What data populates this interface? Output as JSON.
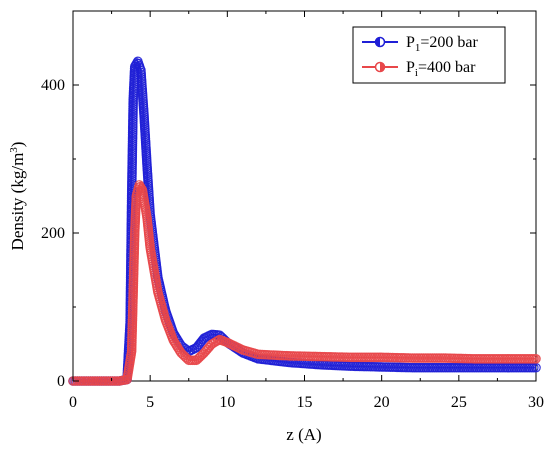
{
  "chart_data": {
    "type": "scatter",
    "xlabel": "z (A)",
    "ylabel_main": "Density (kg/m",
    "ylabel_sup": "3",
    "ylabel_close": ")",
    "xlim": [
      0,
      30
    ],
    "ylim": [
      0,
      500
    ],
    "x_ticks": [
      0,
      5,
      10,
      15,
      20,
      25,
      30
    ],
    "y_ticks": [
      0,
      200,
      400
    ],
    "grid": false,
    "legend_position": "top-right",
    "series": [
      {
        "name_main": "P",
        "name_sub": "1",
        "name_rest": "=200 bar",
        "color": "#1f1fd6",
        "marker": "half-filled circle",
        "points": [
          [
            0,
            0
          ],
          [
            1,
            0
          ],
          [
            2,
            0
          ],
          [
            3,
            0
          ],
          [
            3.5,
            2
          ],
          [
            3.7,
            80
          ],
          [
            3.8,
            250
          ],
          [
            3.9,
            380
          ],
          [
            4.0,
            425
          ],
          [
            4.2,
            432
          ],
          [
            4.4,
            420
          ],
          [
            4.6,
            360
          ],
          [
            4.8,
            290
          ],
          [
            5.0,
            225
          ],
          [
            5.5,
            140
          ],
          [
            6.0,
            95
          ],
          [
            6.5,
            65
          ],
          [
            7.0,
            48
          ],
          [
            7.5,
            40
          ],
          [
            8.0,
            45
          ],
          [
            8.5,
            58
          ],
          [
            9.0,
            63
          ],
          [
            9.5,
            62
          ],
          [
            10.0,
            52
          ],
          [
            11.0,
            38
          ],
          [
            12.0,
            30
          ],
          [
            14.0,
            25
          ],
          [
            16.0,
            22
          ],
          [
            18.0,
            20
          ],
          [
            20.0,
            19
          ],
          [
            22.0,
            18
          ],
          [
            24.0,
            18
          ],
          [
            26.0,
            18
          ],
          [
            28.0,
            18
          ],
          [
            30.0,
            18
          ]
        ]
      },
      {
        "name_main": "P",
        "name_sub": "i",
        "name_rest": "=400 bar",
        "color": "#e8474a",
        "marker": "half-filled circle",
        "points": [
          [
            0,
            0
          ],
          [
            1,
            0
          ],
          [
            2,
            0
          ],
          [
            3,
            0
          ],
          [
            3.5,
            2
          ],
          [
            3.8,
            40
          ],
          [
            3.9,
            120
          ],
          [
            4.0,
            200
          ],
          [
            4.1,
            250
          ],
          [
            4.3,
            265
          ],
          [
            4.5,
            258
          ],
          [
            4.8,
            220
          ],
          [
            5.0,
            180
          ],
          [
            5.5,
            120
          ],
          [
            6.0,
            82
          ],
          [
            6.5,
            55
          ],
          [
            7.0,
            38
          ],
          [
            7.5,
            28
          ],
          [
            8.0,
            28
          ],
          [
            8.5,
            38
          ],
          [
            9.0,
            50
          ],
          [
            9.5,
            56
          ],
          [
            10.0,
            52
          ],
          [
            11.0,
            42
          ],
          [
            12.0,
            36
          ],
          [
            14.0,
            34
          ],
          [
            16.0,
            33
          ],
          [
            18.0,
            32
          ],
          [
            20.0,
            32
          ],
          [
            22.0,
            31
          ],
          [
            24.0,
            31
          ],
          [
            26.0,
            30
          ],
          [
            28.0,
            30
          ],
          [
            30.0,
            30
          ]
        ]
      }
    ]
  }
}
